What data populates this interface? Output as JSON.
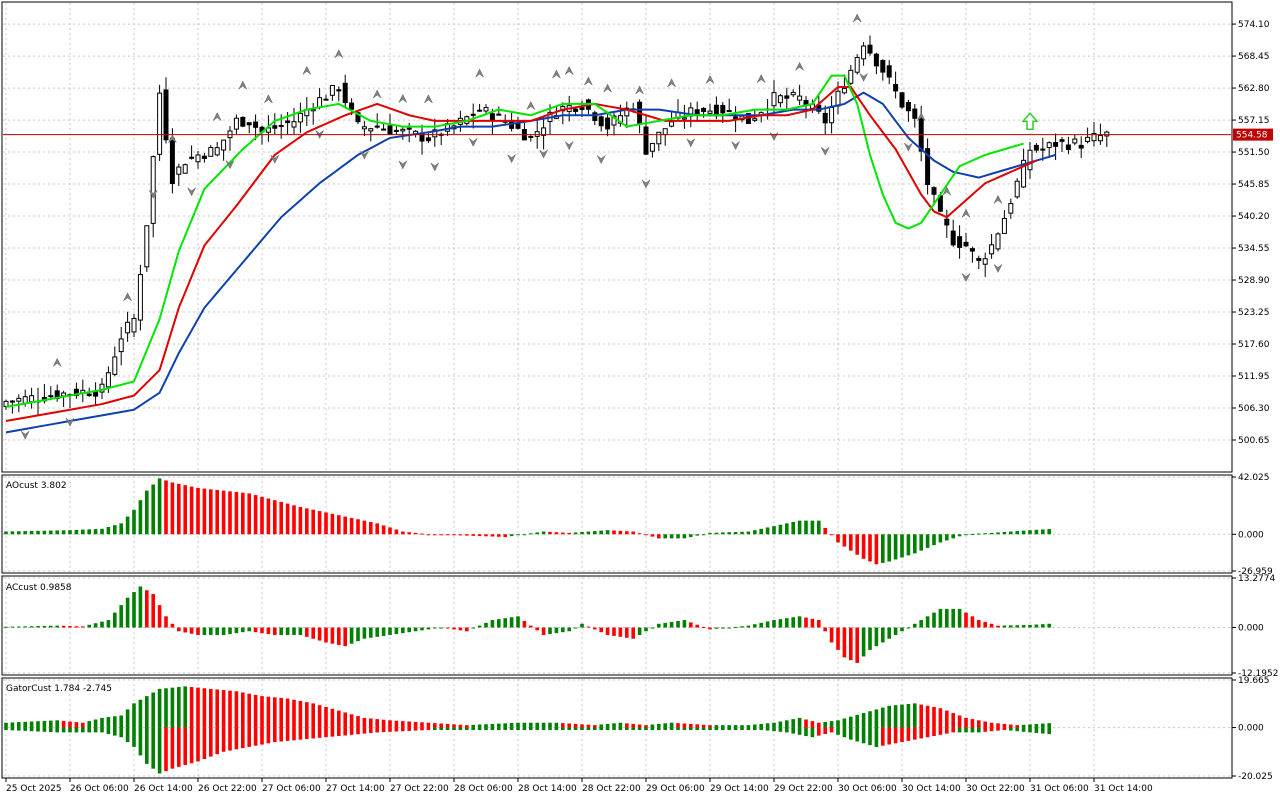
{
  "colors": {
    "bull": "#008000",
    "bear": "#ff0000",
    "line_fast": "#00e600",
    "line_mid": "#e00000",
    "line_slow": "#1040b0",
    "price_line": "#c00000",
    "grid": "#c8c8c8",
    "fractal": "#808080",
    "signal_arrow": "#33cc33"
  },
  "chart_data": [
    {
      "name": "price",
      "type": "candlestick",
      "ylim": [
        495,
        578
      ],
      "y_ticks": [
        "574.10",
        "568.45",
        "562.80",
        "557.15",
        "551.50",
        "545.85",
        "540.20",
        "534.55",
        "528.90",
        "523.25",
        "517.60",
        "511.95",
        "506.30",
        "500.65"
      ],
      "current_price": 554.58,
      "current_price_label": "554.58",
      "x_labels": [
        "25 Oct 2025",
        "26 Oct 06:00",
        "26 Oct 14:00",
        "26 Oct 22:00",
        "27 Oct 06:00",
        "27 Oct 14:00",
        "27 Oct 22:00",
        "28 Oct 06:00",
        "28 Oct 14:00",
        "28 Oct 22:00",
        "29 Oct 06:00",
        "29 Oct 14:00",
        "29 Oct 22:00",
        "30 Oct 06:00",
        "30 Oct 14:00",
        "30 Oct 22:00",
        "31 Oct 06:00",
        "31 Oct 14:00"
      ],
      "close_anchors": [
        [
          0,
          507.5
        ],
        [
          10,
          509
        ],
        [
          15,
          509.5
        ],
        [
          18,
          519
        ],
        [
          20,
          522
        ],
        [
          22,
          539
        ],
        [
          24,
          562
        ],
        [
          26,
          547
        ],
        [
          28,
          550
        ],
        [
          30,
          551
        ],
        [
          33,
          552
        ],
        [
          36,
          557
        ],
        [
          38,
          557
        ],
        [
          40,
          555
        ],
        [
          45,
          557
        ],
        [
          48,
          560
        ],
        [
          52,
          563
        ],
        [
          55,
          556
        ],
        [
          58,
          556
        ],
        [
          62,
          555
        ],
        [
          66,
          554
        ],
        [
          70,
          556
        ],
        [
          74,
          559
        ],
        [
          78,
          557
        ],
        [
          82,
          554
        ],
        [
          86,
          559
        ],
        [
          90,
          560
        ],
        [
          94,
          556
        ],
        [
          98,
          560
        ],
        [
          100,
          552
        ],
        [
          104,
          557
        ],
        [
          108,
          559
        ],
        [
          112,
          559
        ],
        [
          116,
          557
        ],
        [
          120,
          561
        ],
        [
          124,
          561
        ],
        [
          128,
          557
        ],
        [
          132,
          566
        ],
        [
          134,
          571
        ],
        [
          137,
          566
        ],
        [
          140,
          560
        ],
        [
          142,
          557
        ],
        [
          144,
          546
        ],
        [
          146,
          540
        ],
        [
          148,
          536
        ],
        [
          150,
          535
        ],
        [
          152,
          532
        ],
        [
          154,
          535
        ],
        [
          156,
          540
        ],
        [
          158,
          546
        ],
        [
          160,
          552
        ],
        [
          162,
          552
        ],
        [
          164,
          553
        ],
        [
          166,
          553
        ],
        [
          168,
          553
        ],
        [
          170,
          554
        ],
        [
          172,
          554.58
        ]
      ],
      "alligator_fast": [
        [
          0,
          506.5
        ],
        [
          15,
          509.5
        ],
        [
          20,
          511
        ],
        [
          24,
          522
        ],
        [
          27,
          534
        ],
        [
          31,
          545
        ],
        [
          37,
          552
        ],
        [
          42,
          557
        ],
        [
          47,
          559
        ],
        [
          52,
          560
        ],
        [
          57,
          557
        ],
        [
          62,
          556
        ],
        [
          67,
          556
        ],
        [
          72,
          557
        ],
        [
          77,
          559
        ],
        [
          82,
          558
        ],
        [
          87,
          560
        ],
        [
          92,
          560
        ],
        [
          97,
          556
        ],
        [
          102,
          557
        ],
        [
          107,
          558
        ],
        [
          112,
          558
        ],
        [
          117,
          559
        ],
        [
          122,
          559
        ],
        [
          126,
          560
        ],
        [
          129,
          565
        ],
        [
          131,
          565
        ],
        [
          133,
          560
        ],
        [
          135,
          551
        ],
        [
          137,
          544
        ],
        [
          139,
          539
        ],
        [
          141,
          538
        ],
        [
          143,
          539
        ],
        [
          146,
          544
        ],
        [
          149,
          549
        ],
        [
          151,
          550
        ],
        [
          153,
          551
        ],
        [
          156,
          552
        ],
        [
          159,
          553
        ]
      ],
      "alligator_mid": [
        [
          0,
          504
        ],
        [
          15,
          507
        ],
        [
          20,
          508.5
        ],
        [
          24,
          513
        ],
        [
          27,
          524
        ],
        [
          31,
          535
        ],
        [
          36,
          542
        ],
        [
          42,
          551
        ],
        [
          47,
          555
        ],
        [
          53,
          558
        ],
        [
          58,
          560
        ],
        [
          63,
          558
        ],
        [
          67,
          557
        ],
        [
          72,
          557
        ],
        [
          77,
          557
        ],
        [
          82,
          557
        ],
        [
          87,
          559
        ],
        [
          92,
          560
        ],
        [
          97,
          559
        ],
        [
          103,
          557
        ],
        [
          108,
          557
        ],
        [
          113,
          557
        ],
        [
          118,
          558
        ],
        [
          122,
          558
        ],
        [
          126,
          559
        ],
        [
          130,
          563
        ],
        [
          132,
          563
        ],
        [
          135,
          558
        ],
        [
          139,
          552
        ],
        [
          143,
          544
        ],
        [
          145,
          541
        ],
        [
          147,
          540
        ],
        [
          150,
          543
        ],
        [
          153,
          546
        ],
        [
          157,
          548
        ],
        [
          161,
          550
        ]
      ],
      "alligator_slow": [
        [
          0,
          502
        ],
        [
          15,
          505
        ],
        [
          20,
          506
        ],
        [
          24,
          509
        ],
        [
          27,
          516
        ],
        [
          31,
          524
        ],
        [
          37,
          532
        ],
        [
          43,
          540
        ],
        [
          49,
          546
        ],
        [
          55,
          551
        ],
        [
          60,
          554
        ],
        [
          66,
          555
        ],
        [
          71,
          556
        ],
        [
          76,
          556
        ],
        [
          82,
          557
        ],
        [
          87,
          558
        ],
        [
          92,
          558
        ],
        [
          97,
          559
        ],
        [
          102,
          559
        ],
        [
          108,
          558
        ],
        [
          113,
          558
        ],
        [
          118,
          558
        ],
        [
          123,
          559
        ],
        [
          127,
          559
        ],
        [
          131,
          560
        ],
        [
          134,
          562
        ],
        [
          137,
          560
        ],
        [
          141,
          554
        ],
        [
          145,
          550
        ],
        [
          148,
          548
        ],
        [
          152,
          547
        ],
        [
          158,
          549
        ],
        [
          164,
          551
        ]
      ],
      "fractals_up": [
        8,
        19,
        26,
        33,
        37,
        41,
        47,
        52,
        58,
        62,
        66,
        74,
        82,
        86,
        88,
        91,
        94,
        99,
        104,
        110,
        118,
        124,
        133,
        143,
        147,
        150,
        155
      ],
      "fractals_down": [
        3,
        10,
        23,
        29,
        35,
        42,
        49,
        56,
        62,
        67,
        73,
        79,
        84,
        88,
        93,
        100,
        107,
        114,
        120,
        128,
        134,
        141,
        150,
        155
      ],
      "signal_arrow_at": 160
    },
    {
      "name": "AOcust",
      "type": "bar",
      "label": "AOcust 3.802",
      "ylim": [
        -26.959,
        42.025
      ],
      "y_ticks": [
        "42.025",
        "0.000",
        "-26.959"
      ],
      "anchors": [
        [
          0,
          2
        ],
        [
          10,
          3
        ],
        [
          15,
          4
        ],
        [
          18,
          8
        ],
        [
          20,
          18
        ],
        [
          22,
          32
        ],
        [
          24,
          41
        ],
        [
          26,
          38
        ],
        [
          30,
          34
        ],
        [
          34,
          32
        ],
        [
          38,
          30
        ],
        [
          42,
          25
        ],
        [
          46,
          20
        ],
        [
          50,
          16
        ],
        [
          54,
          12
        ],
        [
          58,
          8
        ],
        [
          62,
          2
        ],
        [
          66,
          0
        ],
        [
          72,
          -1
        ],
        [
          78,
          -2
        ],
        [
          84,
          2
        ],
        [
          88,
          1
        ],
        [
          94,
          3
        ],
        [
          98,
          2
        ],
        [
          102,
          -3
        ],
        [
          106,
          -3
        ],
        [
          110,
          1
        ],
        [
          116,
          2
        ],
        [
          120,
          6
        ],
        [
          124,
          10
        ],
        [
          127,
          10
        ],
        [
          130,
          -6
        ],
        [
          134,
          -18
        ],
        [
          136,
          -22
        ],
        [
          138,
          -20
        ],
        [
          142,
          -14
        ],
        [
          146,
          -6
        ],
        [
          150,
          0
        ],
        [
          154,
          1
        ],
        [
          160,
          3
        ],
        [
          163,
          3.8
        ]
      ],
      "colors_rule": "green when rising, red when falling"
    },
    {
      "name": "ACcust",
      "type": "bar",
      "label": "ACcust 0.9858",
      "ylim": [
        -12.1952,
        13.2774
      ],
      "y_ticks": [
        "13.2774",
        "0.000",
        "-12.1952"
      ],
      "anchors": [
        [
          0,
          0.2
        ],
        [
          8,
          0.5
        ],
        [
          12,
          0.3
        ],
        [
          16,
          2
        ],
        [
          19,
          8
        ],
        [
          21,
          11
        ],
        [
          23,
          9
        ],
        [
          25,
          3
        ],
        [
          27,
          -1
        ],
        [
          30,
          -2
        ],
        [
          34,
          -2
        ],
        [
          38,
          -1
        ],
        [
          42,
          -2
        ],
        [
          46,
          -2
        ],
        [
          50,
          -4
        ],
        [
          53,
          -5
        ],
        [
          56,
          -3
        ],
        [
          60,
          -2
        ],
        [
          64,
          -1
        ],
        [
          68,
          0
        ],
        [
          72,
          -1
        ],
        [
          76,
          2
        ],
        [
          80,
          3
        ],
        [
          84,
          -2
        ],
        [
          88,
          -1
        ],
        [
          90,
          1
        ],
        [
          94,
          -2
        ],
        [
          98,
          -3
        ],
        [
          102,
          1
        ],
        [
          106,
          2
        ],
        [
          110,
          -0.5
        ],
        [
          116,
          0.5
        ],
        [
          120,
          2
        ],
        [
          124,
          3
        ],
        [
          127,
          2
        ],
        [
          129,
          -4
        ],
        [
          131,
          -8
        ],
        [
          133,
          -9.5
        ],
        [
          135,
          -6
        ],
        [
          139,
          -2
        ],
        [
          143,
          2
        ],
        [
          146,
          5
        ],
        [
          149,
          5
        ],
        [
          152,
          2
        ],
        [
          155,
          0.5
        ],
        [
          160,
          0.7
        ],
        [
          163,
          1
        ]
      ],
      "colors_rule": "green when rising, red when falling"
    },
    {
      "name": "GatorCust",
      "type": "histogram",
      "label": "GatorCust 1.784 -2.745",
      "ylim": [
        -20.025,
        19.665
      ],
      "y_ticks": [
        "19.665",
        "0.000",
        "-20.025"
      ],
      "upper_anchors": [
        [
          0,
          2
        ],
        [
          8,
          3
        ],
        [
          12,
          2
        ],
        [
          15,
          4
        ],
        [
          18,
          5
        ],
        [
          20,
          10
        ],
        [
          24,
          16
        ],
        [
          28,
          17
        ],
        [
          32,
          16
        ],
        [
          36,
          15
        ],
        [
          40,
          13
        ],
        [
          44,
          12
        ],
        [
          48,
          10
        ],
        [
          52,
          7
        ],
        [
          56,
          4
        ],
        [
          60,
          3
        ],
        [
          66,
          2
        ],
        [
          72,
          1
        ],
        [
          80,
          2
        ],
        [
          86,
          2
        ],
        [
          92,
          1
        ],
        [
          96,
          2
        ],
        [
          100,
          1
        ],
        [
          104,
          2
        ],
        [
          110,
          1
        ],
        [
          116,
          1
        ],
        [
          120,
          2
        ],
        [
          124,
          4
        ],
        [
          127,
          2
        ],
        [
          130,
          3
        ],
        [
          134,
          6
        ],
        [
          138,
          9
        ],
        [
          142,
          10
        ],
        [
          146,
          8
        ],
        [
          150,
          4
        ],
        [
          154,
          2
        ],
        [
          158,
          1
        ],
        [
          163,
          1.8
        ]
      ],
      "lower_anchors": [
        [
          0,
          -1
        ],
        [
          8,
          -2
        ],
        [
          12,
          -2
        ],
        [
          15,
          -2
        ],
        [
          18,
          -4
        ],
        [
          20,
          -8
        ],
        [
          22,
          -15
        ],
        [
          24,
          -19
        ],
        [
          26,
          -17
        ],
        [
          30,
          -14
        ],
        [
          34,
          -10
        ],
        [
          38,
          -8
        ],
        [
          42,
          -6
        ],
        [
          46,
          -5
        ],
        [
          50,
          -4
        ],
        [
          54,
          -3
        ],
        [
          58,
          -2
        ],
        [
          66,
          -1
        ],
        [
          72,
          -1
        ],
        [
          80,
          -1
        ],
        [
          88,
          -1
        ],
        [
          96,
          -1
        ],
        [
          104,
          -1
        ],
        [
          112,
          -1
        ],
        [
          118,
          -1
        ],
        [
          122,
          -2
        ],
        [
          126,
          -4
        ],
        [
          129,
          -2
        ],
        [
          132,
          -5
        ],
        [
          136,
          -8
        ],
        [
          140,
          -6
        ],
        [
          144,
          -4
        ],
        [
          148,
          -2
        ],
        [
          152,
          -2
        ],
        [
          156,
          -1
        ],
        [
          160,
          -2
        ],
        [
          163,
          -2.7
        ]
      ]
    }
  ]
}
